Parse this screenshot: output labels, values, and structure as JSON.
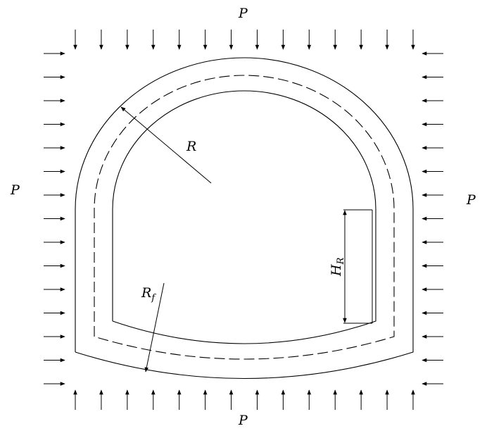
{
  "labels": {
    "p_top": "P",
    "p_bottom": "P",
    "p_left": "P",
    "p_right": "P",
    "radius": "R",
    "floor_radius_base": "R",
    "floor_radius_sub": "f",
    "height_base": "H",
    "height_sub": "R"
  },
  "colors": {
    "line": "#000000",
    "background": "#ffffff"
  },
  "load_arrows": {
    "top": 14,
    "bottom": 14,
    "left": 15,
    "right": 15
  }
}
